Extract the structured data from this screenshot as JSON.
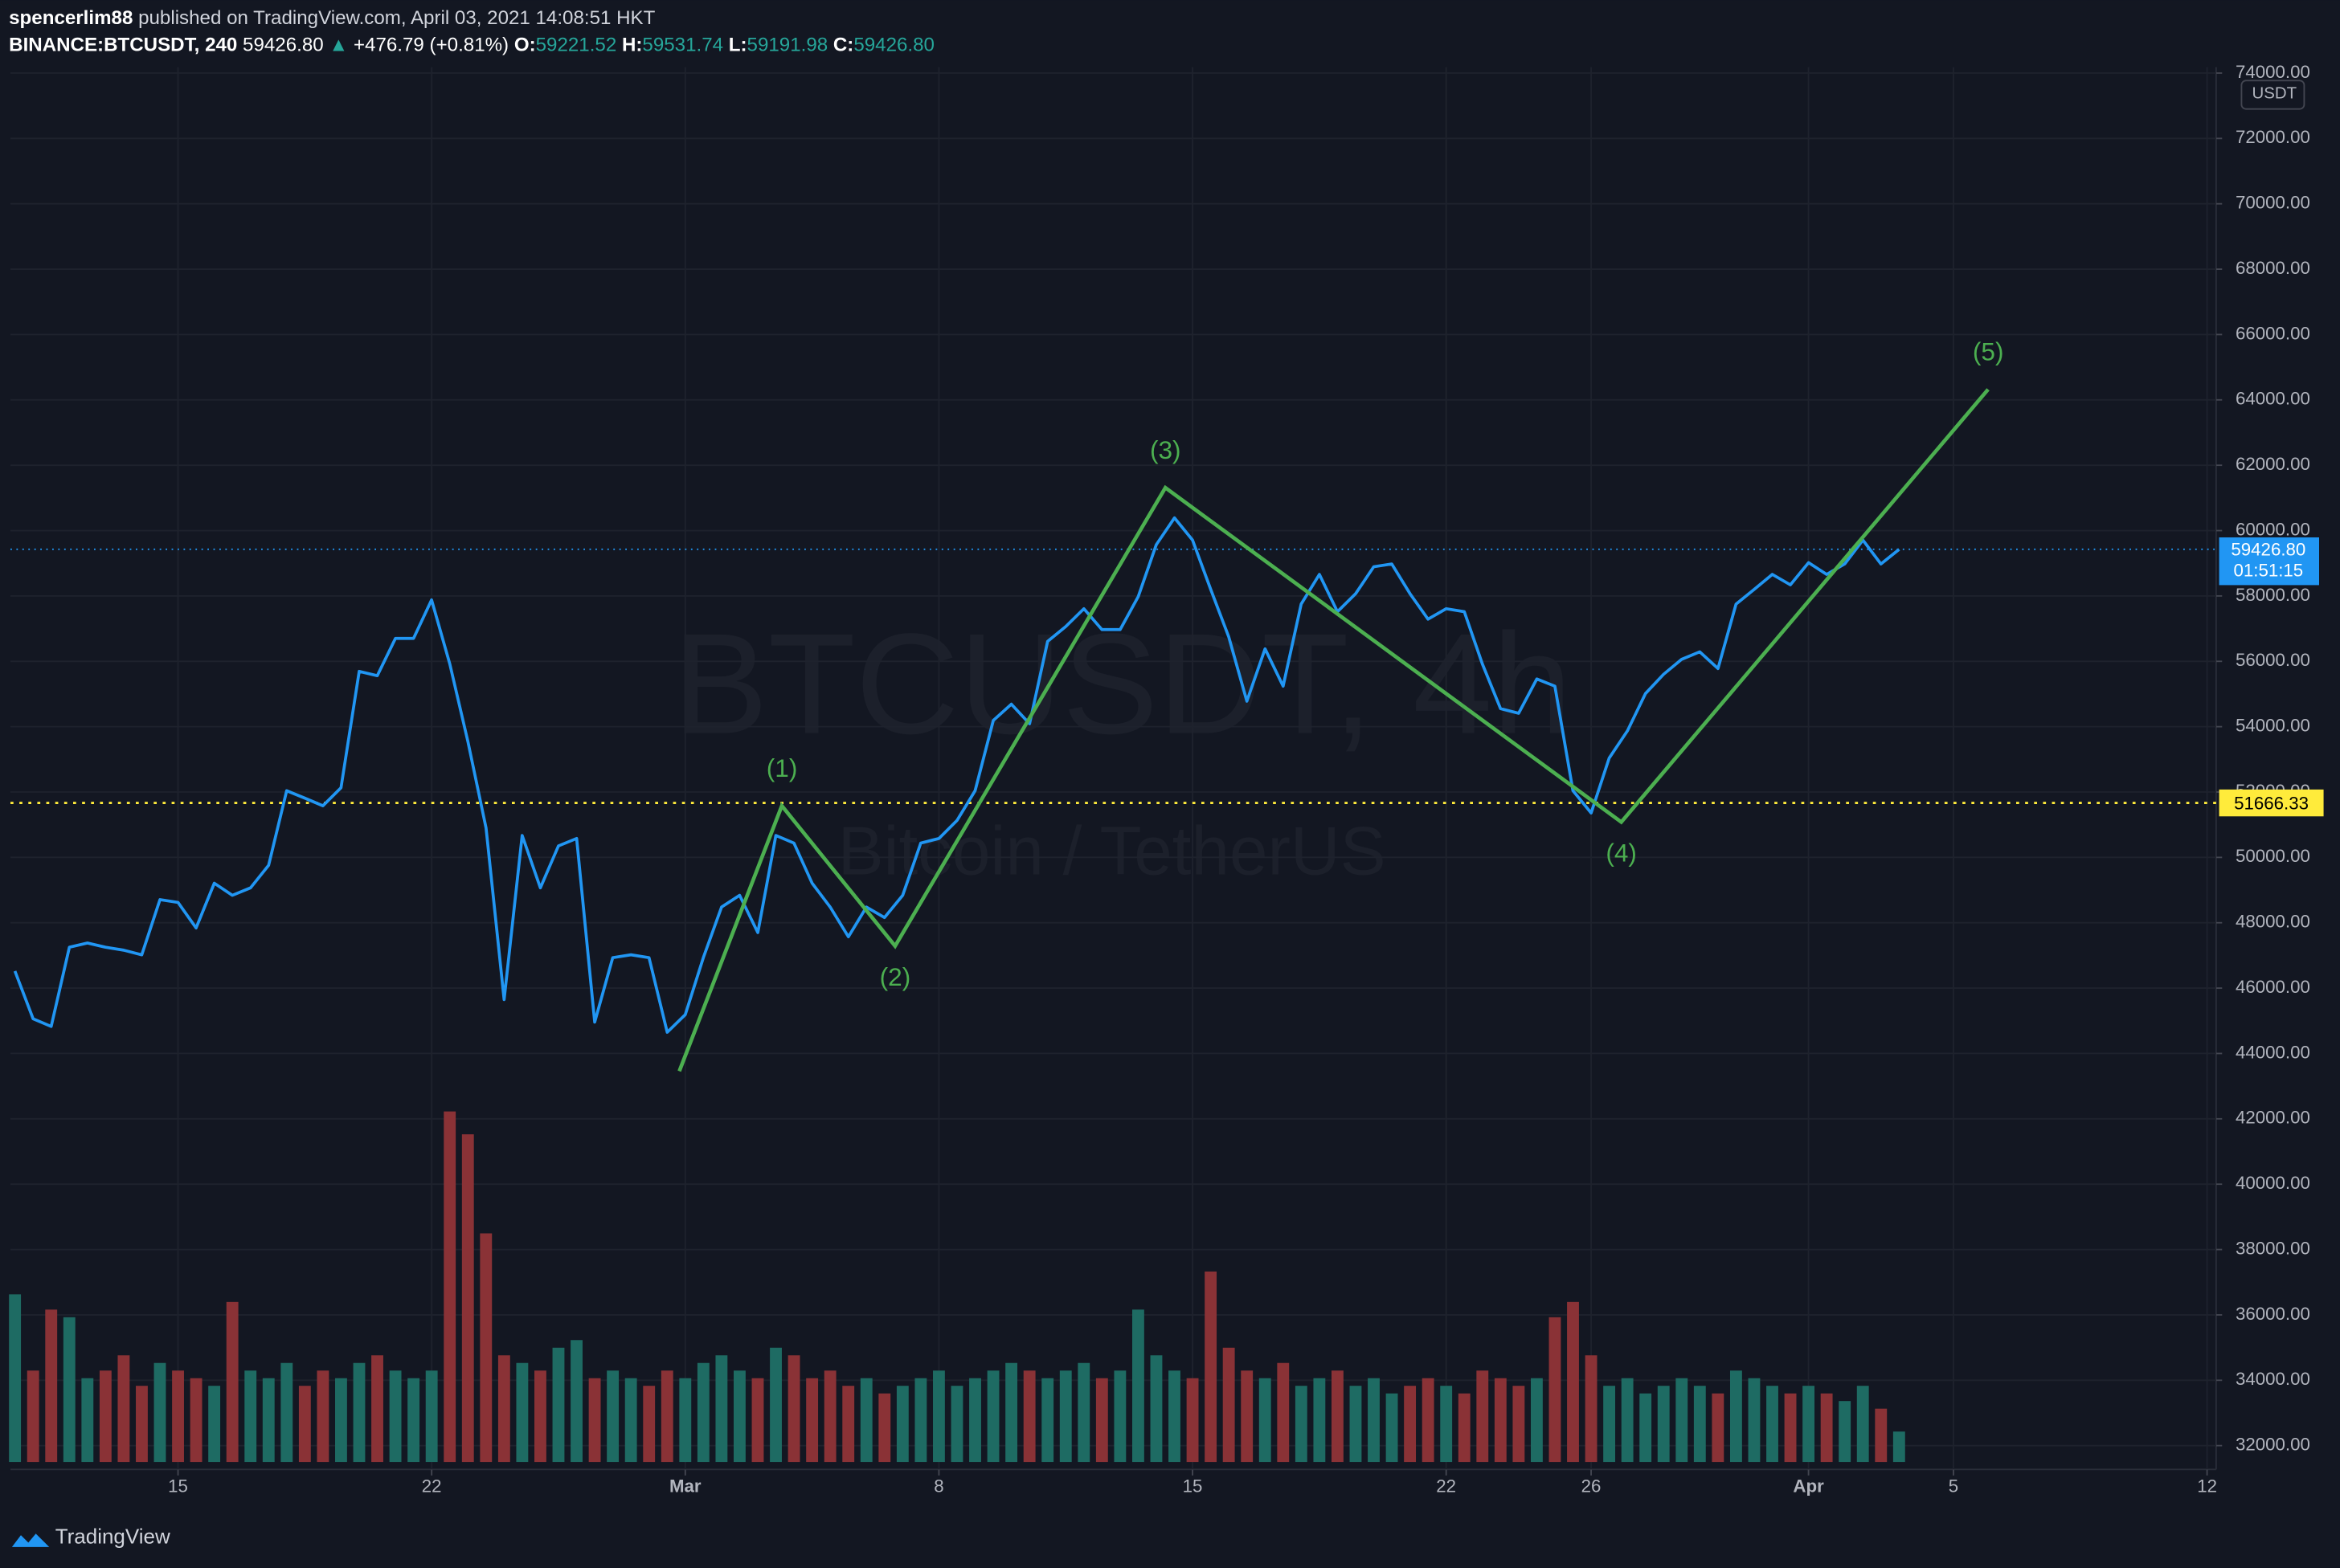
{
  "header": {
    "author": "spencerlim88",
    "published": "published on TradingView.com, April 03, 2021 14:08:51 HKT",
    "symbol": "BINANCE:BTCUSDT, 240",
    "last": "59426.80",
    "arrow": "▲",
    "change": "+476.79 (+0.81%)",
    "ohlc": [
      {
        "label": "O:",
        "value": "59221.52"
      },
      {
        "label": "H:",
        "value": "59531.74"
      },
      {
        "label": "L:",
        "value": "59191.98"
      },
      {
        "label": "C:",
        "value": "59426.80"
      }
    ]
  },
  "chart_data": {
    "type": "line",
    "color": "#2196f3",
    "grid": true,
    "currency": "USDT",
    "watermark": {
      "symbol": "BTCUSDT, 4h",
      "description": "Bitcoin / TetherUS"
    },
    "xlim": [
      "2021-02-10 09:00",
      "2021-04-12 06:00"
    ],
    "xticks": [
      {
        "value": "2021-02-15 00:00",
        "label": "15"
      },
      {
        "value": "2021-02-22 00:00",
        "label": "22"
      },
      {
        "value": "2021-03-01 00:00",
        "label": "Mar"
      },
      {
        "value": "2021-03-08 00:00",
        "label": "8"
      },
      {
        "value": "2021-03-15 00:00",
        "label": "15"
      },
      {
        "value": "2021-03-22 00:00",
        "label": "22"
      },
      {
        "value": "2021-03-26 00:00",
        "label": "26"
      },
      {
        "value": "2021-04-01 00:00",
        "label": "Apr"
      },
      {
        "value": "2021-04-05 00:00",
        "label": "5"
      },
      {
        "value": "2021-04-12 00:00",
        "label": "12"
      }
    ],
    "ylim": [
      31270,
      74180
    ],
    "yticks": [
      {
        "value": 32000,
        "label": "32000.00"
      },
      {
        "value": 34000,
        "label": "34000.00"
      },
      {
        "value": 36000,
        "label": "36000.00"
      },
      {
        "value": 38000,
        "label": "38000.00"
      },
      {
        "value": 40000,
        "label": "40000.00"
      },
      {
        "value": 42000,
        "label": "42000.00"
      },
      {
        "value": 44000,
        "label": "44000.00"
      },
      {
        "value": 46000,
        "label": "46000.00"
      },
      {
        "value": 48000,
        "label": "48000.00"
      },
      {
        "value": 50000,
        "label": "50000.00"
      },
      {
        "value": 52000,
        "label": "52000.00"
      },
      {
        "value": 54000,
        "label": "54000.00"
      },
      {
        "value": 56000,
        "label": "56000.00"
      },
      {
        "value": 58000,
        "label": "58000.00"
      },
      {
        "value": 60000,
        "label": "60000.00"
      },
      {
        "value": 62000,
        "label": "62000.00"
      },
      {
        "value": 64000,
        "label": "64000.00"
      },
      {
        "value": 66000,
        "label": "66000.00"
      },
      {
        "value": 68000,
        "label": "68000.00"
      },
      {
        "value": 70000,
        "label": "70000.00"
      },
      {
        "value": 72000,
        "label": "72000.00"
      },
      {
        "value": 74000,
        "label": "74000.00"
      }
    ],
    "x": [
      "2021-02-10 12:00",
      "2021-02-11 00:00",
      "2021-02-11 12:00",
      "2021-02-12 00:00",
      "2021-02-12 12:00",
      "2021-02-13 00:00",
      "2021-02-13 12:00",
      "2021-02-14 00:00",
      "2021-02-14 12:00",
      "2021-02-15 00:00",
      "2021-02-15 12:00",
      "2021-02-16 00:00",
      "2021-02-16 12:00",
      "2021-02-17 00:00",
      "2021-02-17 12:00",
      "2021-02-18 00:00",
      "2021-02-18 12:00",
      "2021-02-19 00:00",
      "2021-02-19 12:00",
      "2021-02-20 00:00",
      "2021-02-20 12:00",
      "2021-02-21 00:00",
      "2021-02-21 12:00",
      "2021-02-22 00:00",
      "2021-02-22 12:00",
      "2021-02-23 00:00",
      "2021-02-23 12:00",
      "2021-02-24 00:00",
      "2021-02-24 12:00",
      "2021-02-25 00:00",
      "2021-02-25 12:00",
      "2021-02-26 00:00",
      "2021-02-26 12:00",
      "2021-02-27 00:00",
      "2021-02-27 12:00",
      "2021-02-28 00:00",
      "2021-02-28 12:00",
      "2021-03-01 00:00",
      "2021-03-01 12:00",
      "2021-03-02 00:00",
      "2021-03-02 12:00",
      "2021-03-03 00:00",
      "2021-03-03 12:00",
      "2021-03-04 00:00",
      "2021-03-04 12:00",
      "2021-03-05 00:00",
      "2021-03-05 12:00",
      "2021-03-06 00:00",
      "2021-03-06 12:00",
      "2021-03-07 00:00",
      "2021-03-07 12:00",
      "2021-03-08 00:00",
      "2021-03-08 12:00",
      "2021-03-09 00:00",
      "2021-03-09 12:00",
      "2021-03-10 00:00",
      "2021-03-10 12:00",
      "2021-03-11 00:00",
      "2021-03-11 12:00",
      "2021-03-12 00:00",
      "2021-03-12 12:00",
      "2021-03-13 00:00",
      "2021-03-13 12:00",
      "2021-03-14 00:00",
      "2021-03-14 12:00",
      "2021-03-15 00:00",
      "2021-03-15 12:00",
      "2021-03-16 00:00",
      "2021-03-16 12:00",
      "2021-03-17 00:00",
      "2021-03-17 12:00",
      "2021-03-18 00:00",
      "2021-03-18 12:00",
      "2021-03-19 00:00",
      "2021-03-19 12:00",
      "2021-03-20 00:00",
      "2021-03-20 12:00",
      "2021-03-21 00:00",
      "2021-03-21 12:00",
      "2021-03-22 00:00",
      "2021-03-22 12:00",
      "2021-03-23 00:00",
      "2021-03-23 12:00",
      "2021-03-24 00:00",
      "2021-03-24 12:00",
      "2021-03-25 00:00",
      "2021-03-25 12:00",
      "2021-03-26 00:00",
      "2021-03-26 12:00",
      "2021-03-27 00:00",
      "2021-03-27 12:00",
      "2021-03-28 00:00",
      "2021-03-28 12:00",
      "2021-03-29 00:00",
      "2021-03-29 12:00",
      "2021-03-30 00:00",
      "2021-03-30 12:00",
      "2021-03-31 00:00",
      "2021-03-31 12:00",
      "2021-04-01 00:00",
      "2021-04-01 12:00",
      "2021-04-02 00:00",
      "2021-04-02 12:00",
      "2021-04-03 00:00",
      "2021-04-03 12:00"
    ],
    "values": [
      46520,
      45060,
      44830,
      47250,
      47380,
      47250,
      47160,
      47020,
      48710,
      48620,
      47840,
      49210,
      48840,
      49070,
      49760,
      52040,
      51810,
      51580,
      52130,
      55690,
      55560,
      56700,
      56700,
      57880,
      55920,
      53550,
      50900,
      45650,
      50670,
      49070,
      50350,
      50580,
      44960,
      46930,
      47020,
      46930,
      44650,
      45190,
      46930,
      48480,
      48840,
      47700,
      50670,
      50440,
      49210,
      48480,
      47570,
      48480,
      48160,
      48840,
      50440,
      50580,
      51130,
      52040,
      54190,
      54690,
      54090,
      56610,
      57060,
      57610,
      56970,
      56970,
      57980,
      59570,
      60390,
      59710,
      58200,
      56740,
      54780,
      56380,
      55240,
      57750,
      58660,
      57520,
      58070,
      58890,
      58980,
      58070,
      57290,
      57610,
      57520,
      55920,
      54550,
      54410,
      55460,
      55240,
      52040,
      51360,
      53040,
      53870,
      55010,
      55600,
      56060,
      56290,
      55780,
      57750,
      58200,
      58660,
      58340,
      59020,
      58660,
      58980,
      59710,
      58980,
      59426.8
    ],
    "volume": {
      "up_color": "#1e6b63",
      "down_color": "#8a3236",
      "values": [
        110,
        60,
        100,
        95,
        55,
        60,
        70,
        50,
        65,
        60,
        55,
        50,
        105,
        60,
        55,
        65,
        50,
        60,
        55,
        65,
        70,
        60,
        55,
        60,
        230,
        215,
        150,
        70,
        65,
        60,
        75,
        80,
        55,
        60,
        55,
        50,
        60,
        55,
        65,
        70,
        60,
        55,
        75,
        70,
        55,
        60,
        50,
        55,
        45,
        50,
        55,
        60,
        50,
        55,
        60,
        65,
        60,
        55,
        60,
        65,
        55,
        60,
        100,
        70,
        60,
        55,
        125,
        75,
        60,
        55,
        65,
        50,
        55,
        60,
        50,
        55,
        45,
        50,
        55,
        50,
        45,
        60,
        55,
        50,
        55,
        95,
        105,
        70,
        50,
        55,
        45,
        50,
        55,
        50,
        45,
        60,
        55,
        50,
        45,
        50,
        45,
        40,
        50,
        35,
        20
      ]
    },
    "price_line": {
      "value": 59426.8,
      "label": "59426.80",
      "countdown": "01:51:15",
      "color": "#2196f3"
    },
    "level": {
      "value": 51666.33,
      "color": "#ffeb3b"
    },
    "wave": {
      "color": "#4caf50",
      "points": [
        {
          "x": "2021-02-28 20:00",
          "y": 43460
        },
        {
          "x": "2021-03-03 16:00",
          "y": 51580,
          "label": "(1)"
        },
        {
          "x": "2021-03-06 19:00",
          "y": 47290,
          "label": "(2)"
        },
        {
          "x": "2021-03-14 06:00",
          "y": 61310,
          "label": "(3)"
        },
        {
          "x": "2021-03-26 20:00",
          "y": 51080,
          "label": "(4)"
        },
        {
          "x": "2021-04-05 23:00",
          "y": 64320,
          "label": "(5)"
        }
      ]
    }
  },
  "footer": {
    "brand": "TradingView"
  }
}
